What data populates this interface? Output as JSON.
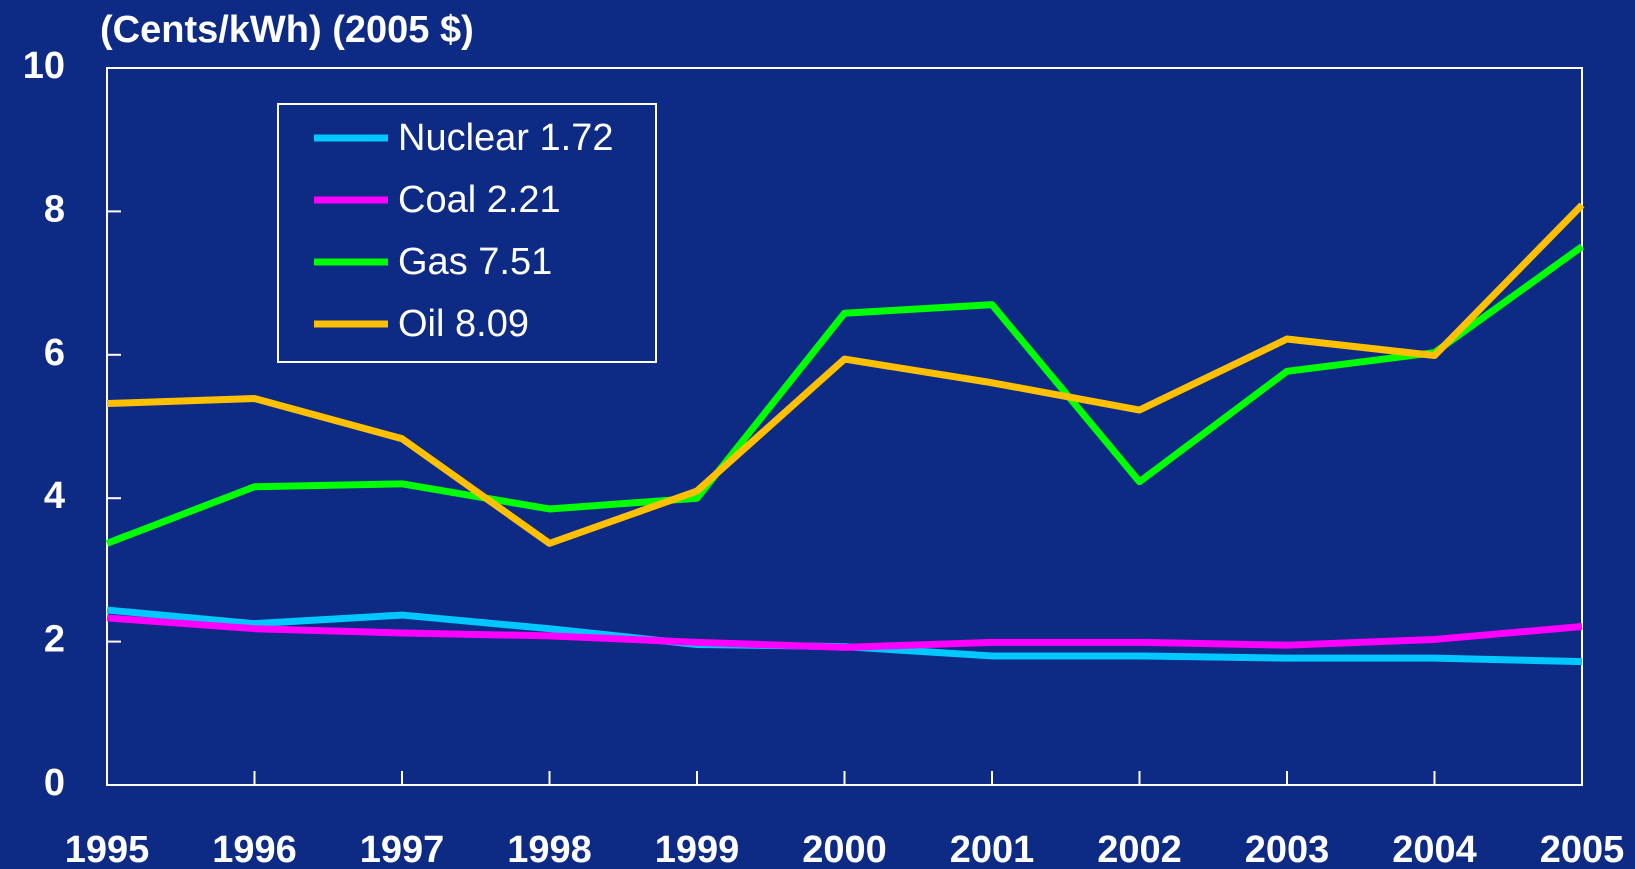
{
  "chart_data": {
    "type": "line",
    "title": "(Cents/kWh) (2005 $)",
    "categories": [
      "1995",
      "1996",
      "1997",
      "1998",
      "1999",
      "2000",
      "2001",
      "2002",
      "2003",
      "2004",
      "2005"
    ],
    "series": [
      {
        "name": "Nuclear 1.72",
        "color": "#00c8ff",
        "values": [
          2.44,
          2.25,
          2.37,
          2.18,
          1.96,
          1.93,
          1.8,
          1.8,
          1.77,
          1.77,
          1.72
        ]
      },
      {
        "name": "Coal 2.21",
        "color": "#ff00ff",
        "values": [
          2.33,
          2.18,
          2.12,
          2.08,
          1.99,
          1.92,
          1.99,
          1.99,
          1.95,
          2.03,
          2.21
        ]
      },
      {
        "name": "Gas 7.51",
        "color": "#00ff00",
        "values": [
          3.37,
          4.16,
          4.2,
          3.85,
          4.0,
          6.58,
          6.7,
          4.23,
          5.77,
          6.03,
          7.51
        ]
      },
      {
        "name": "Oil 8.09",
        "color": "#ffc000",
        "values": [
          5.32,
          5.39,
          4.83,
          3.37,
          4.1,
          5.94,
          5.61,
          5.23,
          6.22,
          5.99,
          8.09
        ]
      }
    ],
    "ylim": [
      0,
      10
    ],
    "yticks": [
      0,
      2,
      4,
      6,
      8,
      10
    ],
    "legend": "upper left"
  }
}
